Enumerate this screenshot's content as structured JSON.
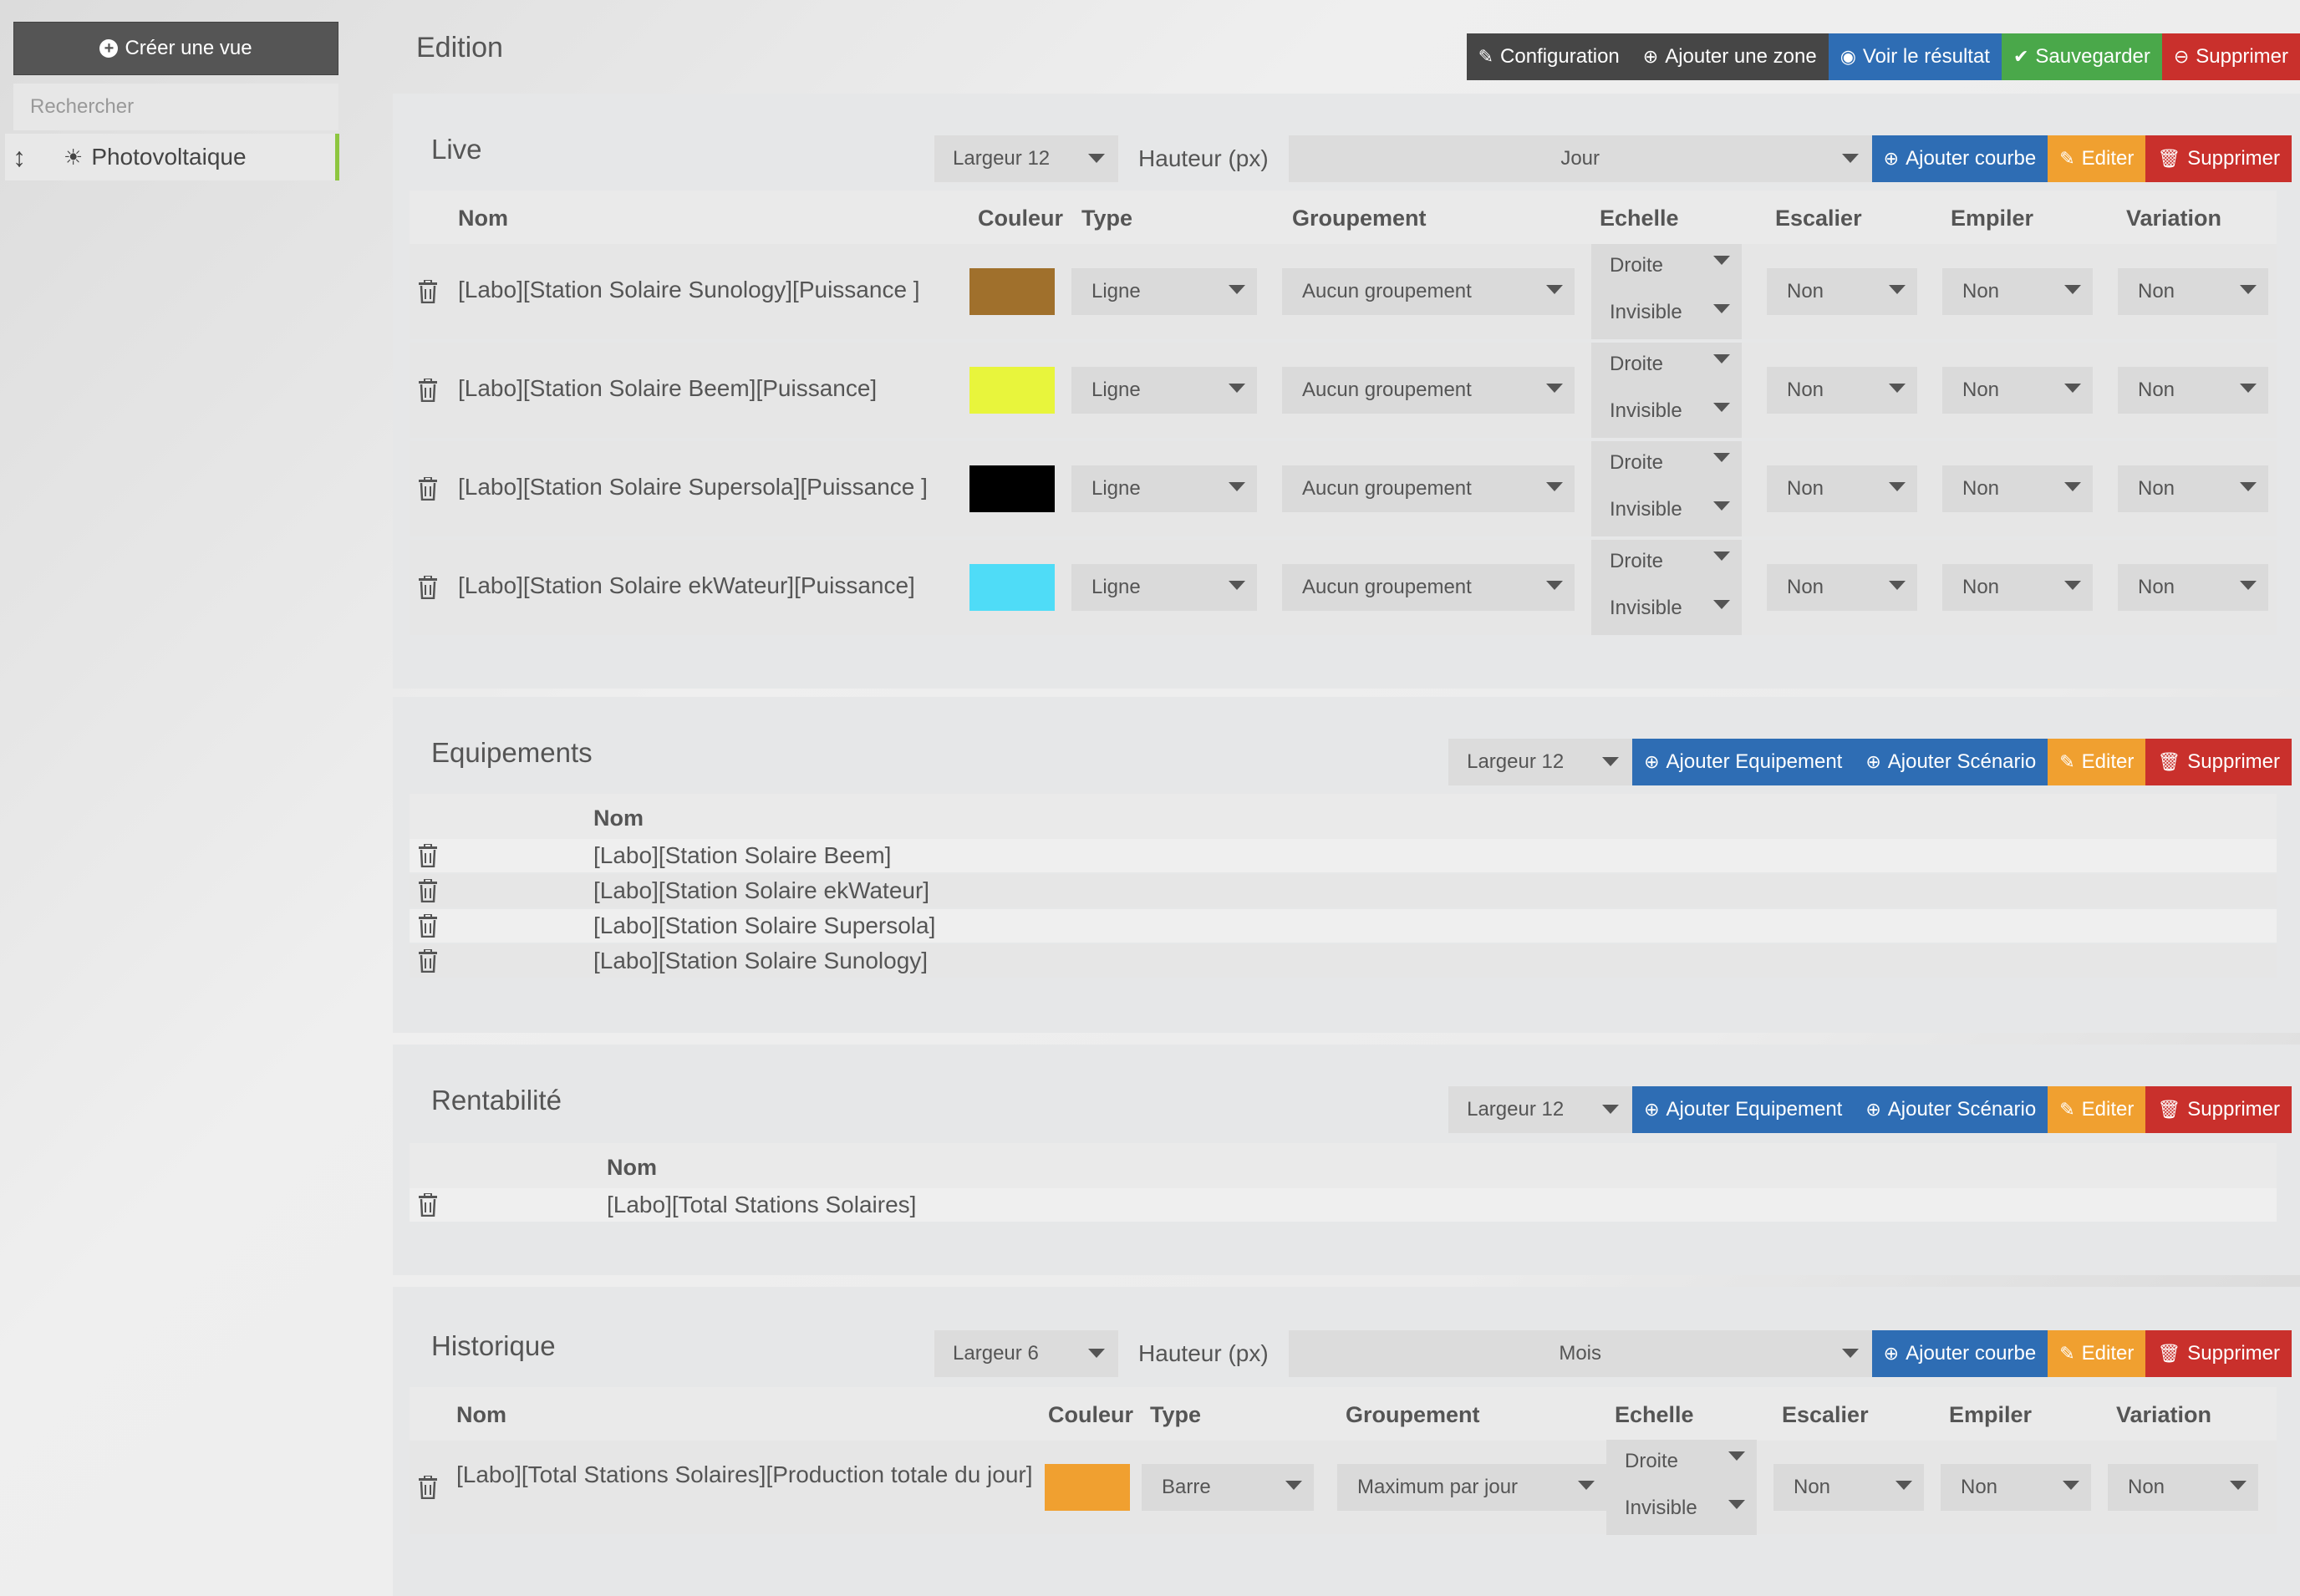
{
  "sidebar": {
    "create_label": "Créer une vue",
    "search_placeholder": "Rechercher",
    "items": [
      {
        "label": "Photovoltaique",
        "icon": "sun-icon"
      }
    ]
  },
  "header": {
    "title": "Edition",
    "buttons": {
      "configuration": "Configuration",
      "add_zone": "Ajouter une zone",
      "see_result": "Voir le résultat",
      "save": "Sauvegarder",
      "delete": "Supprimer"
    }
  },
  "common": {
    "height_label": "Hauteur (px)",
    "add_curve": "Ajouter courbe",
    "add_equipment": "Ajouter Equipement",
    "add_scenario": "Ajouter Scénario",
    "edit": "Editer",
    "delete": "Supprimer",
    "cols": {
      "nom": "Nom",
      "couleur": "Couleur",
      "type": "Type",
      "groupement": "Groupement",
      "echelle": "Echelle",
      "escalier": "Escalier",
      "empiler": "Empiler",
      "variation": "Variation"
    }
  },
  "zones": {
    "live": {
      "title": "Live",
      "width": "Largeur 12",
      "period": "Jour",
      "rows": [
        {
          "nom": "[Labo][Station Solaire Sunology][Puissance ]",
          "color": "#a0702c",
          "type": "Ligne",
          "group": "Aucun groupement",
          "scale_side": "Droite",
          "scale_vis": "Invisible",
          "escalier": "Non",
          "empiler": "Non",
          "variation": "Non"
        },
        {
          "nom": "[Labo][Station Solaire Beem][Puissance]",
          "color": "#e8f53c",
          "type": "Ligne",
          "group": "Aucun groupement",
          "scale_side": "Droite",
          "scale_vis": "Invisible",
          "escalier": "Non",
          "empiler": "Non",
          "variation": "Non"
        },
        {
          "nom": "[Labo][Station Solaire Supersola][Puissance ]",
          "color": "#000000",
          "type": "Ligne",
          "group": "Aucun groupement",
          "scale_side": "Droite",
          "scale_vis": "Invisible",
          "escalier": "Non",
          "empiler": "Non",
          "variation": "Non"
        },
        {
          "nom": "[Labo][Station Solaire ekWateur][Puissance]",
          "color": "#4fdcf7",
          "type": "Ligne",
          "group": "Aucun groupement",
          "scale_side": "Droite",
          "scale_vis": "Invisible",
          "escalier": "Non",
          "empiler": "Non",
          "variation": "Non"
        }
      ]
    },
    "equipements": {
      "title": "Equipements",
      "width": "Largeur 12",
      "rows": [
        "[Labo][Station Solaire Beem]",
        "[Labo][Station Solaire ekWateur]",
        "[Labo][Station Solaire Supersola]",
        "[Labo][Station Solaire Sunology]"
      ]
    },
    "rentabilite": {
      "title": "Rentabilité",
      "width": "Largeur 12",
      "rows": [
        "[Labo][Total Stations Solaires]"
      ]
    },
    "historique": {
      "title": "Historique",
      "width": "Largeur 6",
      "period": "Mois",
      "rows": [
        {
          "nom": "[Labo][Total Stations Solaires][Production totale du jour]",
          "color": "#f0a030",
          "type": "Barre",
          "group": "Maximum par jour",
          "scale_side": "Droite",
          "scale_vis": "Invisible",
          "escalier": "Non",
          "empiler": "Non",
          "variation": "Non"
        }
      ]
    }
  }
}
